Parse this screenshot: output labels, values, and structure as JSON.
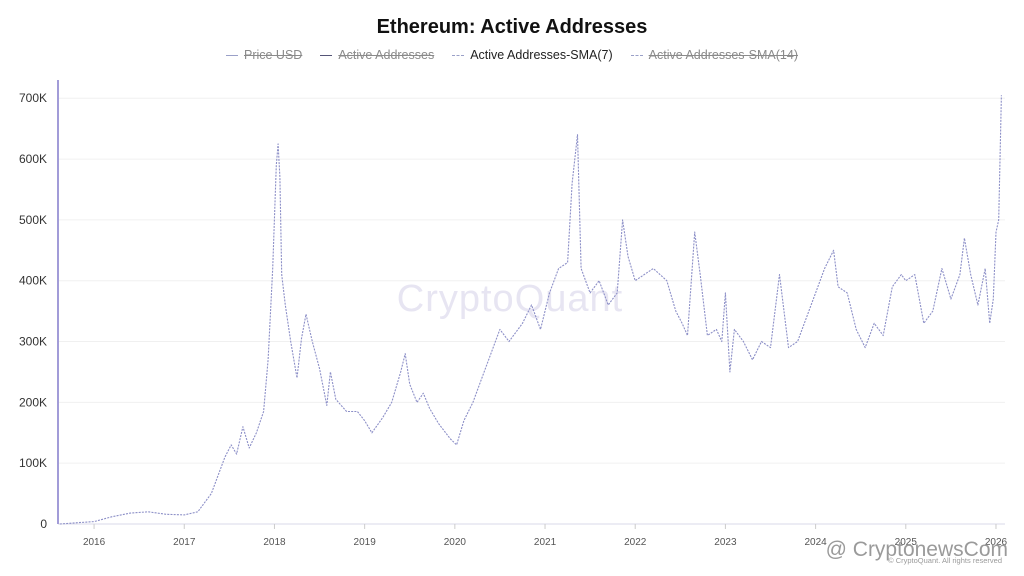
{
  "chart_data": {
    "type": "line",
    "title": "Ethereum: Active Addresses",
    "legend": [
      {
        "name": "Price USD",
        "visible": false,
        "style": "solid"
      },
      {
        "name": "Active Addresses",
        "visible": false,
        "style": "solid"
      },
      {
        "name": "Active Addresses-SMA(7)",
        "visible": true,
        "style": "dotted"
      },
      {
        "name": "Active Addresses-SMA(14)",
        "visible": false,
        "style": "dashed"
      }
    ],
    "legend_position": "top-center",
    "y_ticks": [
      {
        "label": "0",
        "value": 0
      },
      {
        "label": "100K",
        "value": 100000
      },
      {
        "label": "200K",
        "value": 200000
      },
      {
        "label": "300K",
        "value": 300000
      },
      {
        "label": "400K",
        "value": 400000
      },
      {
        "label": "500K",
        "value": 500000
      },
      {
        "label": "600K",
        "value": 600000
      },
      {
        "label": "700K",
        "value": 700000
      }
    ],
    "x_ticks": [
      "2016",
      "2017",
      "2018",
      "2019",
      "2020",
      "2021",
      "2022",
      "2023",
      "2024",
      "2025",
      "2026"
    ],
    "ylim": [
      0,
      730000
    ],
    "xlim": [
      2015.6,
      2026.1
    ],
    "grid": "horizontal",
    "series": [
      {
        "name": "Active Addresses-SMA(7)",
        "color": "#8c8fc7",
        "x": [
          2015.62,
          2015.8,
          2016.0,
          2016.2,
          2016.4,
          2016.6,
          2016.8,
          2017.0,
          2017.15,
          2017.3,
          2017.45,
          2017.52,
          2017.58,
          2017.65,
          2017.72,
          2017.8,
          2017.88,
          2017.93,
          2017.98,
          2018.02,
          2018.04,
          2018.06,
          2018.08,
          2018.12,
          2018.18,
          2018.25,
          2018.3,
          2018.35,
          2018.42,
          2018.5,
          2018.58,
          2018.62,
          2018.68,
          2018.8,
          2018.92,
          2019.0,
          2019.08,
          2019.2,
          2019.3,
          2019.4,
          2019.45,
          2019.5,
          2019.58,
          2019.65,
          2019.72,
          2019.82,
          2019.95,
          2020.02,
          2020.1,
          2020.2,
          2020.3,
          2020.4,
          2020.5,
          2020.6,
          2020.7,
          2020.75,
          2020.85,
          2020.95,
          2021.05,
          2021.15,
          2021.25,
          2021.3,
          2021.36,
          2021.4,
          2021.5,
          2021.6,
          2021.7,
          2021.8,
          2021.86,
          2021.92,
          2022.0,
          2022.1,
          2022.2,
          2022.35,
          2022.45,
          2022.52,
          2022.58,
          2022.66,
          2022.72,
          2022.8,
          2022.9,
          2022.96,
          2023.0,
          2023.05,
          2023.1,
          2023.2,
          2023.3,
          2023.4,
          2023.5,
          2023.6,
          2023.7,
          2023.8,
          2023.9,
          2024.0,
          2024.1,
          2024.2,
          2024.25,
          2024.35,
          2024.45,
          2024.55,
          2024.65,
          2024.75,
          2024.85,
          2024.95,
          2025.0,
          2025.1,
          2025.2,
          2025.3,
          2025.4,
          2025.5,
          2025.6,
          2025.65,
          2025.72,
          2025.8,
          2025.88,
          2025.93,
          2025.97,
          2026.0,
          2026.03,
          2026.06
        ],
        "y": [
          0,
          2000,
          4000,
          12000,
          18000,
          20000,
          16000,
          15000,
          20000,
          50000,
          110000,
          130000,
          115000,
          160000,
          125000,
          150000,
          185000,
          270000,
          420000,
          590000,
          625000,
          570000,
          410000,
          360000,
          300000,
          240000,
          305000,
          345000,
          300000,
          255000,
          195000,
          250000,
          205000,
          185000,
          185000,
          170000,
          150000,
          175000,
          200000,
          250000,
          280000,
          230000,
          200000,
          215000,
          190000,
          165000,
          140000,
          130000,
          170000,
          200000,
          240000,
          280000,
          320000,
          300000,
          320000,
          330000,
          360000,
          320000,
          380000,
          420000,
          430000,
          560000,
          640000,
          420000,
          380000,
          400000,
          360000,
          380000,
          500000,
          440000,
          400000,
          410000,
          420000,
          400000,
          350000,
          330000,
          310000,
          480000,
          410000,
          310000,
          320000,
          300000,
          380000,
          250000,
          320000,
          300000,
          270000,
          300000,
          290000,
          410000,
          290000,
          300000,
          340000,
          380000,
          420000,
          450000,
          390000,
          380000,
          320000,
          290000,
          330000,
          310000,
          390000,
          410000,
          400000,
          410000,
          330000,
          350000,
          420000,
          370000,
          410000,
          470000,
          410000,
          360000,
          420000,
          330000,
          370000,
          480000,
          500000,
          705000
        ]
      }
    ]
  },
  "watermark": "CryptoQuant",
  "credit": "@ CryptonewsCom",
  "copyright": "© CryptoQuant. All rights reserved",
  "colors": {
    "line": "#8c8fc7",
    "grid": "#f0f0f0",
    "axis": "#a29cd8"
  }
}
